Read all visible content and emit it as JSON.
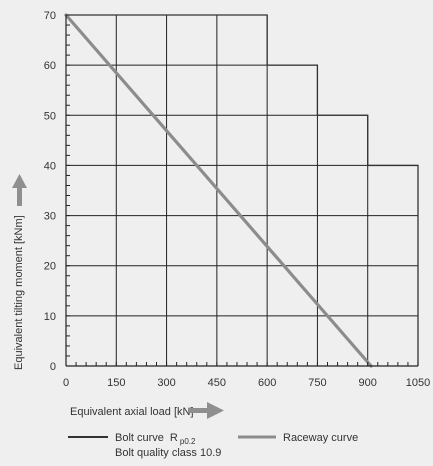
{
  "chart_data": {
    "type": "line",
    "title": "",
    "xlabel": "Equivalent axial load [kN]",
    "ylabel": "Equivalent tilting moment [kNm]",
    "xlim": [
      0,
      1050
    ],
    "ylim": [
      0,
      70
    ],
    "x_ticks": [
      "0",
      "150",
      "300",
      "450",
      "600",
      "750",
      "900",
      "1050"
    ],
    "y_ticks": [
      "0",
      "10",
      "20",
      "30",
      "40",
      "50",
      "60",
      "70"
    ],
    "bolt_curve": {
      "name": "Bolt curve",
      "name_symbol": "R",
      "name_subscript": "p0.2",
      "name_line2": "Bolt quality class 10.9",
      "color": "#333333",
      "steps": [
        {
          "x_end": 600,
          "y": 70
        },
        {
          "x_end": 750,
          "y": 60
        },
        {
          "x_end": 900,
          "y": 50
        },
        {
          "x_end": 1050,
          "y": 40
        }
      ]
    },
    "raceway_curve": {
      "name": "Raceway curve",
      "color": "#8c8c8c",
      "points": [
        [
          0,
          70
        ],
        [
          910,
          0
        ]
      ]
    },
    "grid": true
  },
  "colors": {
    "background": "#efefef",
    "grid": "#222222",
    "arrow": "#8f8f8f"
  }
}
